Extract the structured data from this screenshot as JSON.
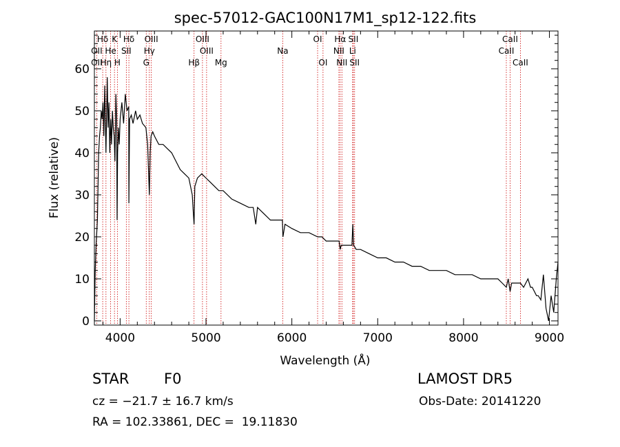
{
  "chart_data": {
    "type": "line",
    "title": "spec-57012-GAC100N17M1_sp12-122.fits",
    "xlabel": "Wavelength (Å)",
    "ylabel": "Flux (relative)",
    "xlim": [
      3700,
      9100
    ],
    "ylim": [
      -1,
      69
    ],
    "x_ticks": [
      4000,
      5000,
      6000,
      7000,
      8000,
      9000
    ],
    "x_tick_labels": [
      "4000",
      "5000",
      "6000",
      "7000",
      "8000",
      "9000"
    ],
    "y_ticks": [
      0,
      10,
      20,
      30,
      40,
      50,
      60
    ],
    "y_tick_labels": [
      "0",
      "10",
      "20",
      "30",
      "40",
      "50",
      "60"
    ],
    "grid": false,
    "series": [
      {
        "x": [
          3700,
          3710,
          3720,
          3735,
          3750,
          3760,
          3770,
          3780,
          3790,
          3800,
          3810,
          3820,
          3835,
          3850,
          3860,
          3870,
          3880,
          3890,
          3900,
          3910,
          3920,
          3930,
          3940,
          3950,
          3960,
          3965,
          3970,
          3980,
          3990,
          4000,
          4020,
          4040,
          4060,
          4080,
          4100,
          4102,
          4110,
          4130,
          4150,
          4180,
          4200,
          4230,
          4260,
          4300,
          4320,
          4340,
          4350,
          4360,
          4380,
          4400,
          4450,
          4500,
          4550,
          4600,
          4650,
          4700,
          4750,
          4800,
          4840,
          4855,
          4861,
          4870,
          4900,
          4950,
          5000,
          5050,
          5100,
          5150,
          5200,
          5300,
          5400,
          5500,
          5550,
          5580,
          5600,
          5650,
          5700,
          5750,
          5800,
          5850,
          5890,
          5896,
          5920,
          6000,
          6100,
          6200,
          6300,
          6350,
          6400,
          6450,
          6500,
          6550,
          6563,
          6575,
          6600,
          6650,
          6700,
          6710,
          6720,
          6750,
          6800,
          6900,
          7000,
          7100,
          7200,
          7300,
          7400,
          7500,
          7600,
          7700,
          7800,
          7900,
          8000,
          8100,
          8200,
          8300,
          8400,
          8450,
          8498,
          8520,
          8542,
          8560,
          8600,
          8662,
          8700,
          8750,
          8780,
          8800,
          8850,
          8870,
          8900,
          8930,
          8960,
          8990,
          9020,
          9050,
          9080,
          9100
        ],
        "y": [
          0,
          12,
          18,
          24,
          40,
          44,
          46,
          50,
          48,
          52,
          44,
          56,
          40,
          58,
          46,
          52,
          40,
          48,
          42,
          50,
          46,
          44,
          38,
          54,
          48,
          24,
          40,
          46,
          42,
          48,
          52,
          47,
          54,
          50,
          51,
          28,
          48,
          49,
          47,
          50,
          48,
          49,
          47,
          46,
          42,
          30,
          40,
          44,
          45,
          44,
          42,
          42,
          41,
          40,
          38,
          36,
          35,
          34,
          30,
          25,
          23,
          32,
          34,
          35,
          34,
          33,
          32,
          31,
          31,
          29,
          28,
          27,
          27,
          23,
          27,
          26,
          25,
          24,
          24,
          24,
          24,
          20,
          23,
          22,
          21,
          21,
          20,
          20,
          19,
          19,
          19,
          19,
          17,
          18,
          18,
          18,
          18,
          23,
          18,
          17,
          17,
          16,
          15,
          15,
          14,
          14,
          13,
          13,
          12,
          12,
          12,
          11,
          11,
          11,
          10,
          10,
          10,
          9,
          8,
          10,
          7,
          9,
          9,
          9,
          8,
          10,
          8,
          8,
          6,
          6,
          5,
          11,
          3,
          0,
          6,
          2,
          10,
          14
        ]
      }
    ],
    "line_marks": [
      {
        "name": "Hδ",
        "wave": 3797,
        "row": 0
      },
      {
        "name": "OII",
        "wave": 3727,
        "row": 1
      },
      {
        "name": "OII",
        "wave": 3727,
        "row": 2
      },
      {
        "name": "Hη",
        "wave": 3835,
        "row": 2
      },
      {
        "name": "K",
        "wave": 3934,
        "row": 0
      },
      {
        "name": "He",
        "wave": 3889,
        "row": 1
      },
      {
        "name": "H",
        "wave": 3968,
        "row": 2
      },
      {
        "name": "SII",
        "wave": 4072,
        "row": 1
      },
      {
        "name": "Hδ",
        "wave": 4102,
        "row": 0
      },
      {
        "name": "OIII",
        "wave": 4363,
        "row": 0
      },
      {
        "name": "Hγ",
        "wave": 4340,
        "row": 1
      },
      {
        "name": "G",
        "wave": 4304,
        "row": 2
      },
      {
        "name": "Hβ",
        "wave": 4861,
        "row": 2
      },
      {
        "name": "OIII",
        "wave": 4959,
        "row": 0
      },
      {
        "name": "OIII",
        "wave": 5007,
        "row": 1
      },
      {
        "name": "Mg",
        "wave": 5175,
        "row": 2
      },
      {
        "name": "Na",
        "wave": 5894,
        "row": 1
      },
      {
        "name": "OI",
        "wave": 6300,
        "row": 0
      },
      {
        "name": "OI",
        "wave": 6363,
        "row": 2
      },
      {
        "name": "Hα",
        "wave": 6563,
        "row": 0
      },
      {
        "name": "NII",
        "wave": 6548,
        "row": 1
      },
      {
        "name": "NII",
        "wave": 6583,
        "row": 2
      },
      {
        "name": "SII",
        "wave": 6716,
        "row": 0
      },
      {
        "name": "Li",
        "wave": 6708,
        "row": 1
      },
      {
        "name": "SII",
        "wave": 6731,
        "row": 2
      },
      {
        "name": "CaII",
        "wave": 8542,
        "row": 0
      },
      {
        "name": "CaII",
        "wave": 8498,
        "row": 1
      },
      {
        "name": "CaII",
        "wave": 8662,
        "row": 2
      }
    ],
    "colors": {
      "spectrum": "#000000",
      "line_marks": "#cc0000",
      "axes": "#000000"
    }
  },
  "info": {
    "class": "STAR",
    "subclass": "F0",
    "survey": "LAMOST DR5",
    "cz_text": "cz = −21.7 ± 16.7 km/s",
    "obs_date": "Obs-Date: 20141220",
    "coords": "RA = 102.33861, DEC =  19.11830"
  }
}
